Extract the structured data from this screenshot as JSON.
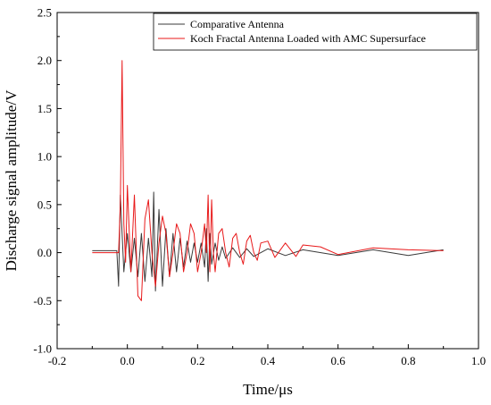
{
  "chart_data": {
    "type": "line",
    "xlabel": "Time/μs",
    "ylabel": "Discharge signal amplitude/V",
    "xlim": [
      -0.2,
      1.0
    ],
    "ylim": [
      -1.0,
      2.5
    ],
    "x_ticks": [
      "-0.2",
      "0.0",
      "0.2",
      "0.4",
      "0.6",
      "0.8",
      "1.0"
    ],
    "y_ticks": [
      "-1.0",
      "-0.5",
      "0.0",
      "0.5",
      "1.0",
      "1.5",
      "2.0",
      "2.5"
    ],
    "grid": false,
    "legend_position": "top-right",
    "series": [
      {
        "name": "Comparative Antenna",
        "color": "#3a3a3a",
        "points": [
          [
            -0.1,
            0.02
          ],
          [
            -0.03,
            0.02
          ],
          [
            -0.025,
            -0.35
          ],
          [
            -0.02,
            0.6
          ],
          [
            -0.015,
            0.2
          ],
          [
            -0.01,
            -0.2
          ],
          [
            0.0,
            0.2
          ],
          [
            0.01,
            -0.2
          ],
          [
            0.02,
            0.15
          ],
          [
            0.03,
            -0.25
          ],
          [
            0.04,
            0.2
          ],
          [
            0.05,
            -0.3
          ],
          [
            0.06,
            0.15
          ],
          [
            0.07,
            -0.25
          ],
          [
            0.075,
            0.63
          ],
          [
            0.08,
            -0.4
          ],
          [
            0.09,
            0.45
          ],
          [
            0.1,
            -0.35
          ],
          [
            0.11,
            0.25
          ],
          [
            0.12,
            -0.25
          ],
          [
            0.13,
            0.2
          ],
          [
            0.14,
            -0.2
          ],
          [
            0.15,
            0.15
          ],
          [
            0.16,
            -0.15
          ],
          [
            0.17,
            0.12
          ],
          [
            0.18,
            -0.1
          ],
          [
            0.19,
            0.1
          ],
          [
            0.2,
            -0.1
          ],
          [
            0.21,
            0.1
          ],
          [
            0.22,
            -0.15
          ],
          [
            0.225,
            0.25
          ],
          [
            0.23,
            -0.3
          ],
          [
            0.235,
            0.2
          ],
          [
            0.24,
            -0.12
          ],
          [
            0.25,
            0.1
          ],
          [
            0.26,
            -0.08
          ],
          [
            0.27,
            0.06
          ],
          [
            0.28,
            -0.06
          ],
          [
            0.3,
            0.05
          ],
          [
            0.32,
            -0.05
          ],
          [
            0.34,
            0.04
          ],
          [
            0.36,
            -0.04
          ],
          [
            0.4,
            0.04
          ],
          [
            0.45,
            -0.03
          ],
          [
            0.5,
            0.03
          ],
          [
            0.6,
            -0.03
          ],
          [
            0.7,
            0.03
          ],
          [
            0.8,
            -0.03
          ],
          [
            0.9,
            0.03
          ]
        ]
      },
      {
        "name": "Koch Fractal Antenna Loaded with AMC Supersurface",
        "color": "#e8191a",
        "points": [
          [
            -0.1,
            0.0
          ],
          [
            -0.025,
            0.0
          ],
          [
            -0.02,
            0.5
          ],
          [
            -0.015,
            2.0
          ],
          [
            -0.01,
            0.3
          ],
          [
            -0.005,
            -0.1
          ],
          [
            0.0,
            0.7
          ],
          [
            0.01,
            -0.2
          ],
          [
            0.02,
            0.6
          ],
          [
            0.03,
            -0.45
          ],
          [
            0.04,
            -0.5
          ],
          [
            0.05,
            0.35
          ],
          [
            0.06,
            0.55
          ],
          [
            0.07,
            0.0
          ],
          [
            0.08,
            -0.35
          ],
          [
            0.09,
            0.1
          ],
          [
            0.1,
            0.38
          ],
          [
            0.11,
            0.2
          ],
          [
            0.12,
            -0.25
          ],
          [
            0.13,
            0.0
          ],
          [
            0.14,
            0.3
          ],
          [
            0.15,
            0.2
          ],
          [
            0.16,
            -0.2
          ],
          [
            0.17,
            0.0
          ],
          [
            0.18,
            0.3
          ],
          [
            0.19,
            0.2
          ],
          [
            0.2,
            -0.2
          ],
          [
            0.21,
            0.0
          ],
          [
            0.22,
            0.3
          ],
          [
            0.225,
            0.0
          ],
          [
            0.23,
            0.6
          ],
          [
            0.235,
            -0.2
          ],
          [
            0.24,
            0.55
          ],
          [
            0.245,
            0.0
          ],
          [
            0.25,
            -0.2
          ],
          [
            0.26,
            0.2
          ],
          [
            0.27,
            0.25
          ],
          [
            0.28,
            0.0
          ],
          [
            0.29,
            -0.15
          ],
          [
            0.3,
            0.15
          ],
          [
            0.31,
            0.2
          ],
          [
            0.32,
            0.0
          ],
          [
            0.33,
            -0.12
          ],
          [
            0.34,
            0.12
          ],
          [
            0.35,
            0.18
          ],
          [
            0.36,
            0.0
          ],
          [
            0.37,
            -0.08
          ],
          [
            0.38,
            0.1
          ],
          [
            0.4,
            0.12
          ],
          [
            0.42,
            -0.05
          ],
          [
            0.45,
            0.1
          ],
          [
            0.48,
            -0.04
          ],
          [
            0.5,
            0.08
          ],
          [
            0.55,
            0.06
          ],
          [
            0.6,
            -0.02
          ],
          [
            0.7,
            0.05
          ],
          [
            0.8,
            0.03
          ],
          [
            0.9,
            0.02
          ]
        ]
      }
    ]
  }
}
